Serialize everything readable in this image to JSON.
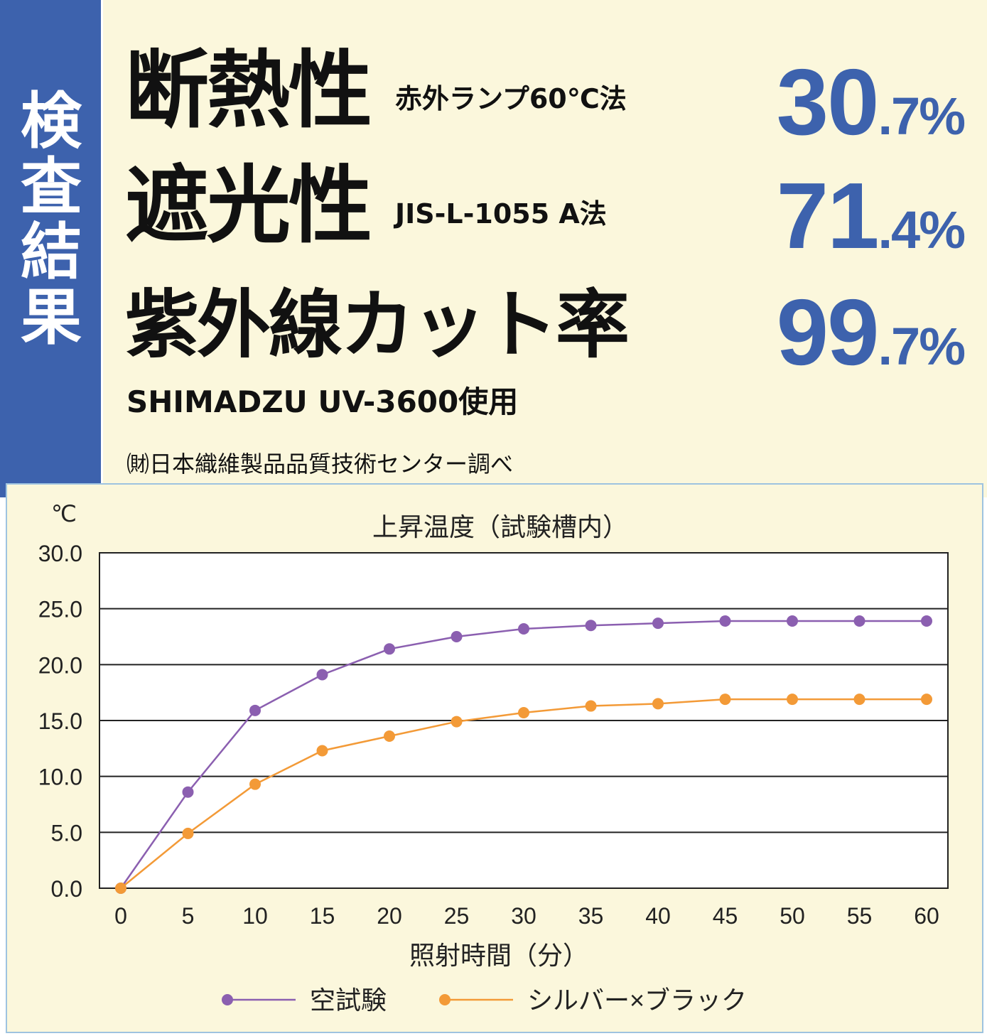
{
  "side_label": [
    "検",
    "査",
    "結",
    "果"
  ],
  "results": [
    {
      "label": "断熱性",
      "method": "赤外ランプ60℃法",
      "value_int": "30",
      "value_dec": ".7%"
    },
    {
      "label": "遮光性",
      "method": "JIS-L-1055 A法",
      "value_int": "71",
      "value_dec": ".4%"
    },
    {
      "label": "紫外線カット率",
      "method": "",
      "value_int": "99",
      "value_dec": ".7%"
    }
  ],
  "instrument_note": "SHIMADZU UV-3600使用",
  "source_note": "㈶日本織維製品品質技術センター調べ",
  "chart_data": {
    "type": "line",
    "title": "上昇温度（試験槽内）",
    "unit_label": "℃",
    "xlabel": "照射時間（分）",
    "ylabel": "",
    "x": [
      0,
      5,
      10,
      15,
      20,
      25,
      30,
      35,
      40,
      45,
      50,
      55,
      60
    ],
    "ylim": [
      0,
      30
    ],
    "yticks": [
      "0.0",
      "5.0",
      "10.0",
      "15.0",
      "20.0",
      "25.0",
      "30.0"
    ],
    "grid": true,
    "legend_position": "bottom",
    "series": [
      {
        "name": "空試験",
        "color": "#8b5fb0",
        "values": [
          0,
          8.6,
          15.9,
          19.1,
          21.4,
          22.5,
          23.2,
          23.5,
          23.7,
          23.9,
          23.9,
          23.9,
          23.9
        ]
      },
      {
        "name": "シルバー×ブラック",
        "color": "#f39a37",
        "values": [
          0,
          4.9,
          9.3,
          12.3,
          13.6,
          14.9,
          15.7,
          16.3,
          16.5,
          16.9,
          16.9,
          16.9,
          16.9
        ]
      }
    ]
  }
}
